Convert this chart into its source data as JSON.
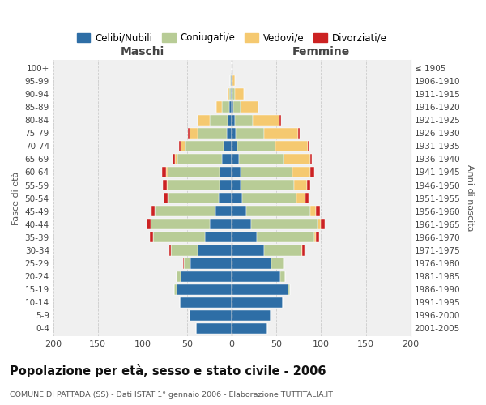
{
  "age_groups": [
    "0-4",
    "5-9",
    "10-14",
    "15-19",
    "20-24",
    "25-29",
    "30-34",
    "35-39",
    "40-44",
    "45-49",
    "50-54",
    "55-59",
    "60-64",
    "65-69",
    "70-74",
    "75-79",
    "80-84",
    "85-89",
    "90-94",
    "95-99",
    "100+"
  ],
  "birth_years": [
    "2001-2005",
    "1996-2000",
    "1991-1995",
    "1986-1990",
    "1981-1985",
    "1976-1980",
    "1971-1975",
    "1966-1970",
    "1961-1965",
    "1956-1960",
    "1951-1955",
    "1946-1950",
    "1941-1945",
    "1936-1940",
    "1931-1935",
    "1926-1930",
    "1921-1925",
    "1916-1920",
    "1911-1915",
    "1906-1910",
    "≤ 1905"
  ],
  "male_celibi": [
    40,
    47,
    58,
    62,
    57,
    46,
    38,
    30,
    25,
    18,
    15,
    14,
    14,
    11,
    9,
    6,
    5,
    3,
    1,
    1,
    0
  ],
  "male_coniugati": [
    0,
    0,
    0,
    3,
    5,
    8,
    30,
    58,
    66,
    68,
    56,
    58,
    58,
    50,
    43,
    32,
    20,
    8,
    2,
    1,
    0
  ],
  "male_vedovi": [
    0,
    0,
    0,
    0,
    0,
    0,
    0,
    0,
    0,
    0,
    1,
    1,
    2,
    3,
    5,
    9,
    13,
    6,
    2,
    0,
    0
  ],
  "male_divorziati": [
    0,
    0,
    0,
    0,
    0,
    1,
    2,
    4,
    4,
    4,
    4,
    4,
    4,
    2,
    2,
    2,
    0,
    0,
    0,
    0,
    0
  ],
  "female_nubili": [
    40,
    43,
    57,
    63,
    54,
    44,
    36,
    28,
    22,
    16,
    12,
    10,
    10,
    8,
    6,
    4,
    3,
    2,
    1,
    1,
    0
  ],
  "female_coniugate": [
    0,
    0,
    0,
    2,
    6,
    14,
    42,
    64,
    74,
    72,
    60,
    60,
    58,
    50,
    43,
    32,
    20,
    8,
    2,
    0,
    0
  ],
  "female_vedove": [
    0,
    0,
    0,
    0,
    0,
    0,
    1,
    2,
    4,
    6,
    10,
    14,
    20,
    30,
    36,
    38,
    30,
    20,
    10,
    2,
    0
  ],
  "female_divorziate": [
    0,
    0,
    0,
    0,
    0,
    1,
    2,
    4,
    4,
    5,
    4,
    4,
    4,
    2,
    2,
    2,
    2,
    0,
    0,
    0,
    0
  ],
  "colors": {
    "celibi": "#2E6EA6",
    "coniugati": "#B8CC96",
    "vedovi": "#F5C970",
    "divorziati": "#CC2222"
  },
  "title": "Popolazione per età, sesso e stato civile - 2006",
  "subtitle": "COMUNE DI PATTADA (SS) - Dati ISTAT 1° gennaio 2006 - Elaborazione TUTTITALIA.IT",
  "xlabel_male": "Maschi",
  "xlabel_female": "Femmine",
  "ylabel_left": "Fasce di età",
  "ylabel_right": "Anni di nascita",
  "legend_labels": [
    "Celibi/Nubili",
    "Coniugati/e",
    "Vedovi/e",
    "Divorziati/e"
  ],
  "background_color": "#ffffff",
  "plot_bg_color": "#f0f0f0",
  "grid_color": "#cccccc"
}
